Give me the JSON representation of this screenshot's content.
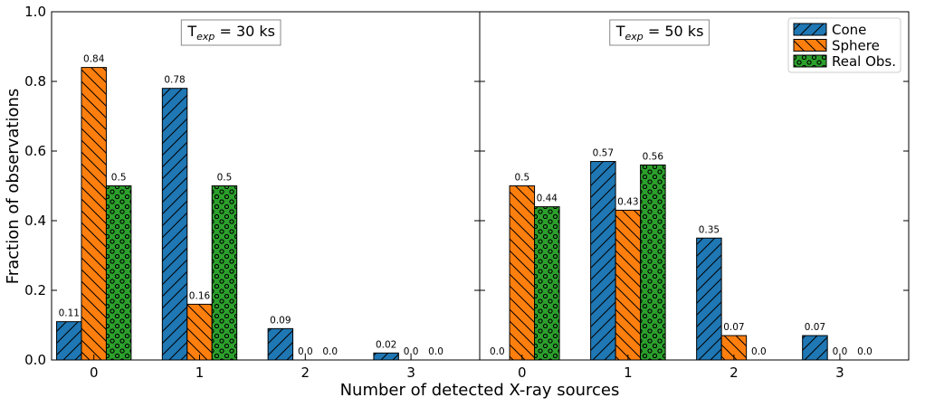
{
  "chart_data": {
    "type": "bar",
    "xlabel": "Number of detected X-ray sources",
    "ylabel": "Fraction of observations",
    "ylim": [
      0,
      1.0
    ],
    "yticks": [
      "0.0",
      "0.2",
      "0.4",
      "0.6",
      "0.8",
      "1.0"
    ],
    "categories": [
      "0",
      "1",
      "2",
      "3"
    ],
    "legend": {
      "placement": "top-right",
      "entries": [
        {
          "name": "Cone",
          "color": "#1f77b4",
          "hatch": "forward-diagonal"
        },
        {
          "name": "Sphere",
          "color": "#ff7f0e",
          "hatch": "back-diagonal"
        },
        {
          "name": "Real Obs.",
          "color": "#2ca02c",
          "hatch": "circles"
        }
      ]
    },
    "panels": [
      {
        "title_prefix": "T",
        "title_sub": "exp",
        "title_suffix": " = 30 ks",
        "series": [
          {
            "name": "Cone",
            "values": [
              0.11,
              0.78,
              0.09,
              0.02
            ],
            "labels": [
              "0.11",
              "0.78",
              "0.09",
              "0.02"
            ]
          },
          {
            "name": "Sphere",
            "values": [
              0.84,
              0.16,
              0.0,
              0.0
            ],
            "labels": [
              "0.84",
              "0.16",
              "0.0",
              "0.0"
            ]
          },
          {
            "name": "Real Obs.",
            "values": [
              0.5,
              0.5,
              0.0,
              0.0
            ],
            "labels": [
              "0.5",
              "0.5",
              "0.0",
              "0.0"
            ]
          }
        ]
      },
      {
        "title_prefix": "T",
        "title_sub": "exp",
        "title_suffix": " = 50 ks",
        "series": [
          {
            "name": "Cone",
            "values": [
              0.0,
              0.57,
              0.35,
              0.07
            ],
            "labels": [
              "0.0",
              "0.57",
              "0.35",
              "0.07"
            ]
          },
          {
            "name": "Sphere",
            "values": [
              0.5,
              0.43,
              0.07,
              0.0
            ],
            "labels": [
              "0.5",
              "0.43",
              "0.07",
              "0.0"
            ]
          },
          {
            "name": "Real Obs.",
            "values": [
              0.44,
              0.56,
              0.0,
              0.0
            ],
            "labels": [
              "0.44",
              "0.56",
              "0.0",
              "0.0"
            ]
          }
        ]
      }
    ]
  }
}
